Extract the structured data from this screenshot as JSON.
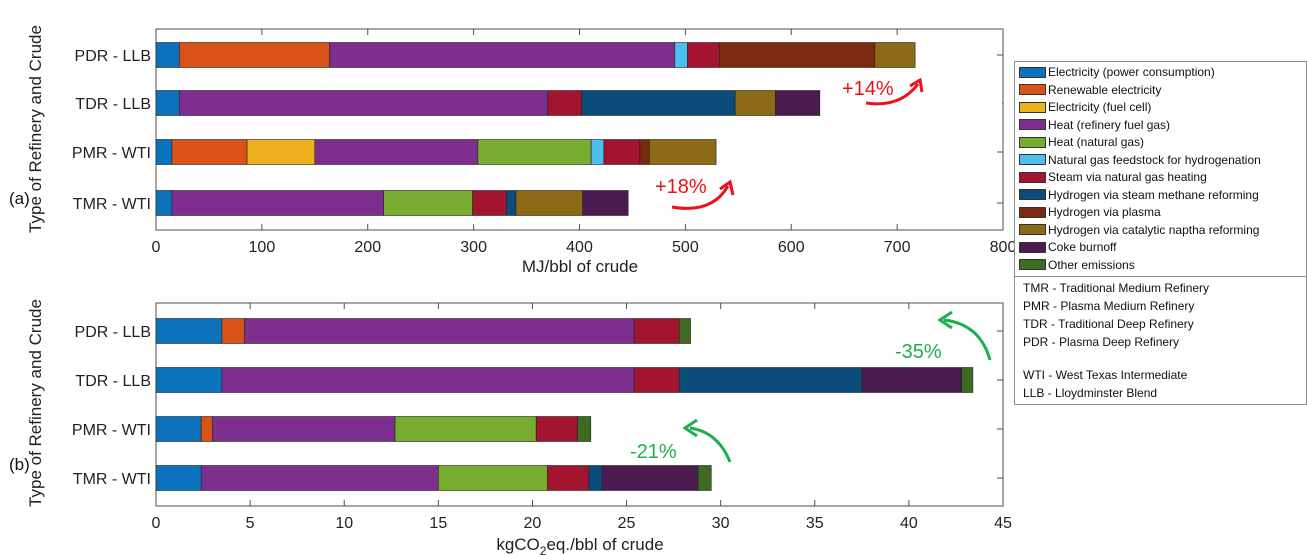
{
  "chart_data": [
    {
      "type": "bar",
      "orientation": "horizontal",
      "stacked": true,
      "panel_tag": "(a)",
      "xlabel": "MJ/bbl of crude",
      "ylabel": "Type of Refinery and Crude",
      "xlim": [
        0,
        800
      ],
      "xticks": [
        "0",
        "100",
        "200",
        "300",
        "400",
        "500",
        "600",
        "700",
        "800"
      ],
      "categories": [
        "PDR - LLB",
        "TDR - LLB",
        "PMR - WTI",
        "TMR - WTI"
      ],
      "series": [
        {
          "name": "Electricity (power consumption)",
          "values": [
            22,
            22,
            15,
            15
          ]
        },
        {
          "name": "Renewable electricity",
          "values": [
            142,
            0,
            71,
            0
          ]
        },
        {
          "name": "Electricity (fuel cell)",
          "values": [
            0,
            0,
            64,
            0
          ]
        },
        {
          "name": "Heat (refinery fuel gas)",
          "values": [
            326,
            348,
            154,
            200
          ]
        },
        {
          "name": "Heat (natural gas)",
          "values": [
            0,
            0,
            107,
            84
          ]
        },
        {
          "name": "Natural gas feedstock for hydrogenation",
          "values": [
            12,
            0,
            12,
            0
          ]
        },
        {
          "name": "Steam via natural gas heating",
          "values": [
            30,
            32,
            34,
            32
          ]
        },
        {
          "name": "Hydrogen via steam methane reforming",
          "values": [
            0,
            145,
            0,
            9
          ]
        },
        {
          "name": "Hydrogen via plasma",
          "values": [
            147,
            0,
            9,
            0
          ]
        },
        {
          "name": "Hydrogen via catalytic naptha reforming",
          "values": [
            38,
            38,
            63,
            63
          ]
        },
        {
          "name": "Coke burnoff",
          "values": [
            0,
            42,
            0,
            43
          ]
        },
        {
          "name": "Other emissions",
          "values": [
            0,
            0,
            0,
            0
          ]
        }
      ],
      "annotations": [
        {
          "text": "+14%",
          "color": "#e8121a"
        },
        {
          "text": "+18%",
          "color": "#e8121a"
        }
      ]
    },
    {
      "type": "bar",
      "orientation": "horizontal",
      "stacked": true,
      "panel_tag": "(b)",
      "xlabel_main": "kgCO",
      "xlabel_sub": "2",
      "xlabel_rest": "eq./bbl of crude",
      "ylabel": "Type of Refinery and Crude",
      "xlim": [
        0,
        45
      ],
      "xticks": [
        "0",
        "5",
        "10",
        "15",
        "20",
        "25",
        "30",
        "35",
        "40",
        "45"
      ],
      "categories": [
        "PDR - LLB",
        "TDR - LLB",
        "PMR - WTI",
        "TMR - WTI"
      ],
      "series": [
        {
          "name": "Electricity (power consumption)",
          "values": [
            3.5,
            3.5,
            2.4,
            2.4
          ]
        },
        {
          "name": "Renewable electricity",
          "values": [
            1.2,
            0,
            0.6,
            0
          ]
        },
        {
          "name": "Electricity (fuel cell)",
          "values": [
            0,
            0,
            0,
            0
          ]
        },
        {
          "name": "Heat (refinery fuel gas)",
          "values": [
            20.7,
            21.9,
            9.7,
            12.6
          ]
        },
        {
          "name": "Heat (natural gas)",
          "values": [
            0,
            0,
            7.5,
            5.8
          ]
        },
        {
          "name": "Natural gas feedstock for hydrogenation",
          "values": [
            0,
            0,
            0,
            0
          ]
        },
        {
          "name": "Steam via natural gas heating",
          "values": [
            2.4,
            2.4,
            2.2,
            2.2
          ]
        },
        {
          "name": "Hydrogen via steam methane reforming",
          "values": [
            0,
            9.7,
            0,
            0.7
          ]
        },
        {
          "name": "Hydrogen via plasma",
          "values": [
            0,
            0,
            0,
            0
          ]
        },
        {
          "name": "Hydrogen via catalytic naptha reforming",
          "values": [
            0,
            0,
            0,
            0
          ]
        },
        {
          "name": "Coke burnoff",
          "values": [
            0,
            5.3,
            0,
            5.1
          ]
        },
        {
          "name": "Other emissions",
          "values": [
            0.6,
            0.6,
            0.7,
            0.7
          ]
        }
      ],
      "annotations": [
        {
          "text": "-35%",
          "color": "#1eb04a"
        },
        {
          "text": "-21%",
          "color": "#1eb04a"
        }
      ]
    }
  ],
  "legend": {
    "placement": "right",
    "items": [
      {
        "label": "Electricity (power consumption)",
        "color": "#0c72bd"
      },
      {
        "label": "Renewable electricity",
        "color": "#d95319"
      },
      {
        "label": "Electricity (fuel cell)",
        "color": "#edb120"
      },
      {
        "label": "Heat (refinery fuel gas)",
        "color": "#7e2f8e"
      },
      {
        "label": "Heat (natural gas)",
        "color": "#77ac30"
      },
      {
        "label": "Natural gas feedstock for hydrogenation",
        "color": "#4dbeee"
      },
      {
        "label": "Steam via natural gas heating",
        "color": "#a2142f"
      },
      {
        "label": "Hydrogen via steam methane reforming",
        "color": "#0b4c7a"
      },
      {
        "label": "Hydrogen via plasma",
        "color": "#7b2a10"
      },
      {
        "label": "Hydrogen via catalytic naptha reforming",
        "color": "#8c6a16"
      },
      {
        "label": "Coke burnoff",
        "color": "#4b1a4f"
      },
      {
        "label": "Other emissions",
        "color": "#3f6a21"
      }
    ],
    "abbreviations": [
      "TMR - Traditional Medium Refinery",
      "PMR - Plasma Medium Refinery",
      "TDR - Traditional Deep Refinery",
      "PDR - Plasma Deep Refinery",
      "WTI - West Texas Intermediate",
      "LLB - Lloydminster Blend"
    ]
  }
}
